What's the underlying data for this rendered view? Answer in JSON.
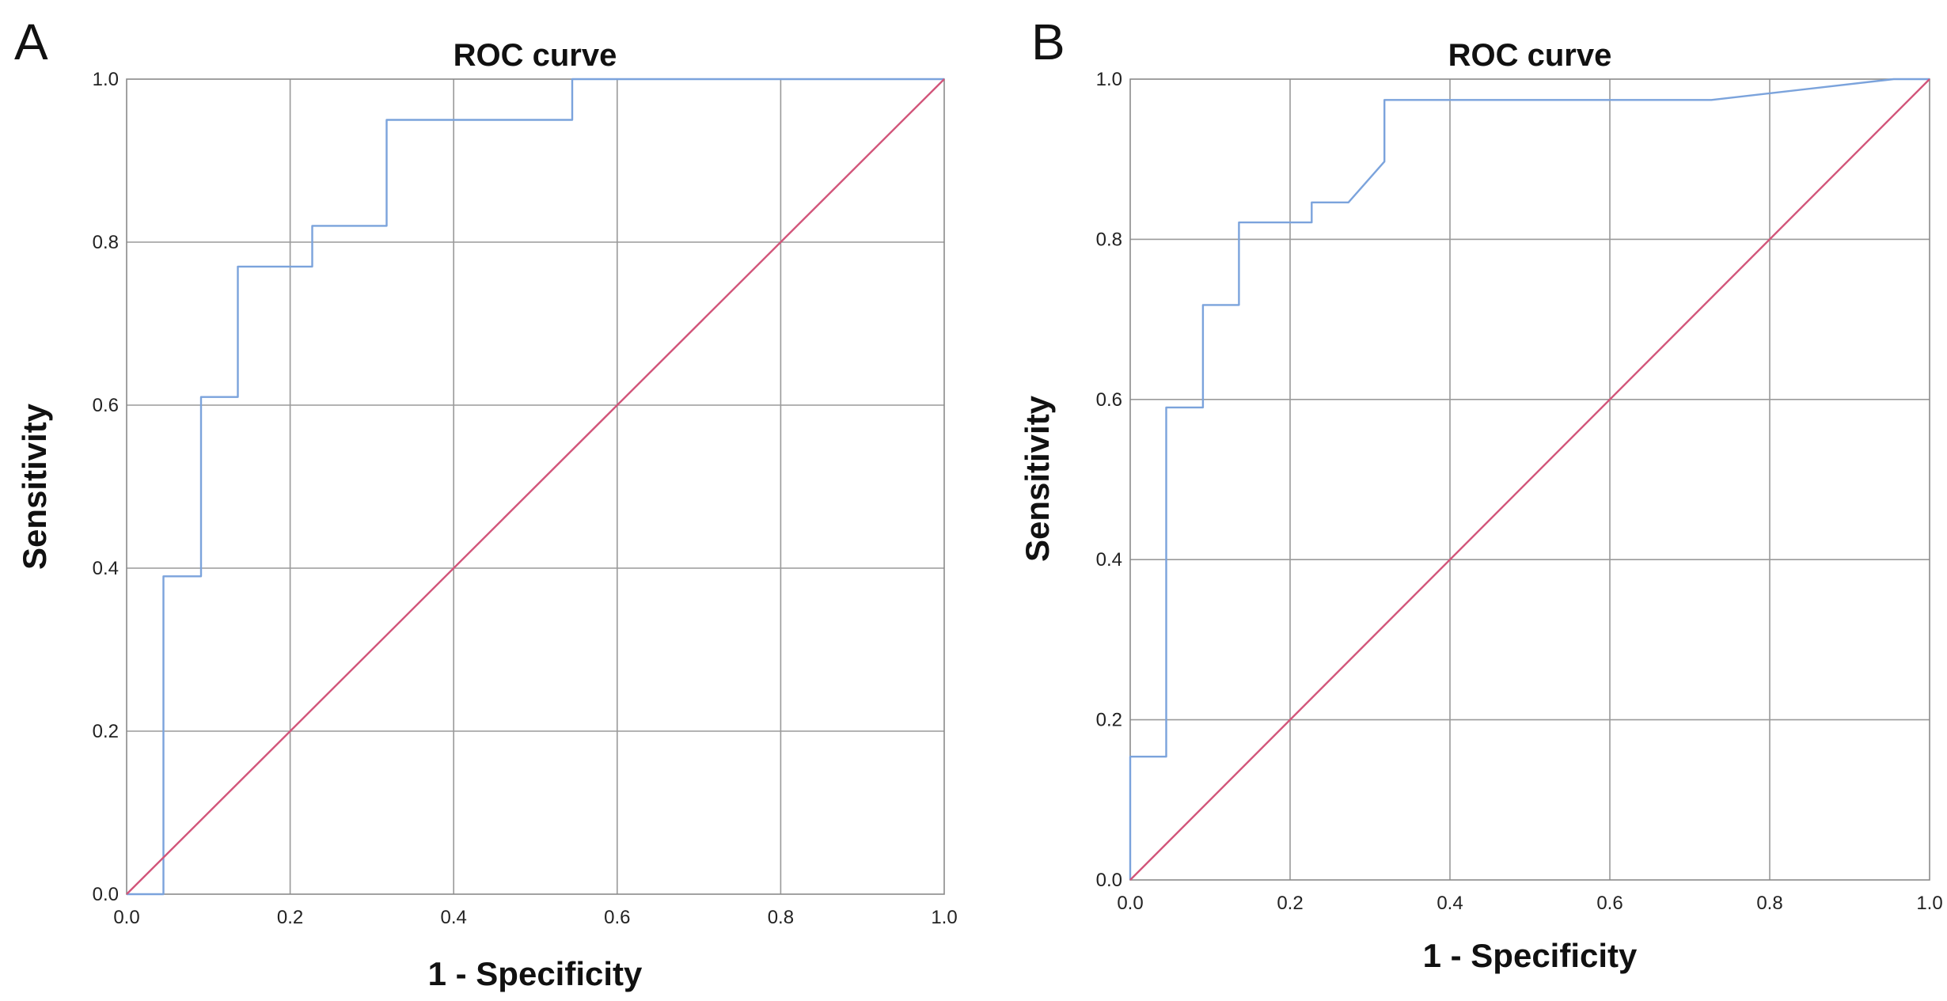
{
  "panels": [
    {
      "label": "A"
    },
    {
      "label": "B"
    }
  ],
  "colors": {
    "roc_curve": "#7ba3dc",
    "reference_line": "#d2557a"
  },
  "chart_data": [
    {
      "type": "line",
      "panel": "A",
      "title": "ROC curve",
      "xlabel": "1 - Specificity",
      "ylabel": "Sensitivity",
      "xlim": [
        0,
        1
      ],
      "ylim": [
        0,
        1
      ],
      "grid": true,
      "xticks": [
        "0.0",
        "0.2",
        "0.4",
        "0.6",
        "0.8",
        "1.0"
      ],
      "yticks": [
        "0.0",
        "0.2",
        "0.4",
        "0.6",
        "0.8",
        "1.0"
      ],
      "series": [
        {
          "name": "roc-curve",
          "x": [
            0.0,
            0.045,
            0.045,
            0.091,
            0.091,
            0.136,
            0.136,
            0.227,
            0.227,
            0.318,
            0.318,
            0.545,
            0.545,
            1.0
          ],
          "y": [
            0.0,
            0.0,
            0.39,
            0.39,
            0.61,
            0.61,
            0.77,
            0.77,
            0.82,
            0.82,
            0.95,
            0.95,
            1.0,
            1.0
          ]
        },
        {
          "name": "reference-line",
          "x": [
            0.0,
            1.0
          ],
          "y": [
            0.0,
            1.0
          ]
        }
      ]
    },
    {
      "type": "line",
      "panel": "B",
      "title": "ROC curve",
      "xlabel": "1 - Specificity",
      "ylabel": "Sensitivity",
      "xlim": [
        0,
        1
      ],
      "ylim": [
        0,
        1
      ],
      "grid": true,
      "xticks": [
        "0.0",
        "0.2",
        "0.4",
        "0.6",
        "0.8",
        "1.0"
      ],
      "yticks": [
        "0.0",
        "0.2",
        "0.4",
        "0.6",
        "0.8",
        "1.0"
      ],
      "series": [
        {
          "name": "roc-curve",
          "x": [
            0.0,
            0.0,
            0.045,
            0.045,
            0.091,
            0.091,
            0.136,
            0.136,
            0.227,
            0.227,
            0.273,
            0.318,
            0.318,
            0.727,
            0.955,
            1.0
          ],
          "y": [
            0.0,
            0.154,
            0.154,
            0.59,
            0.59,
            0.718,
            0.718,
            0.821,
            0.821,
            0.846,
            0.846,
            0.897,
            0.974,
            0.974,
            1.0,
            1.0
          ]
        },
        {
          "name": "reference-line",
          "x": [
            0.0,
            1.0
          ],
          "y": [
            0.0,
            1.0
          ]
        }
      ]
    }
  ]
}
